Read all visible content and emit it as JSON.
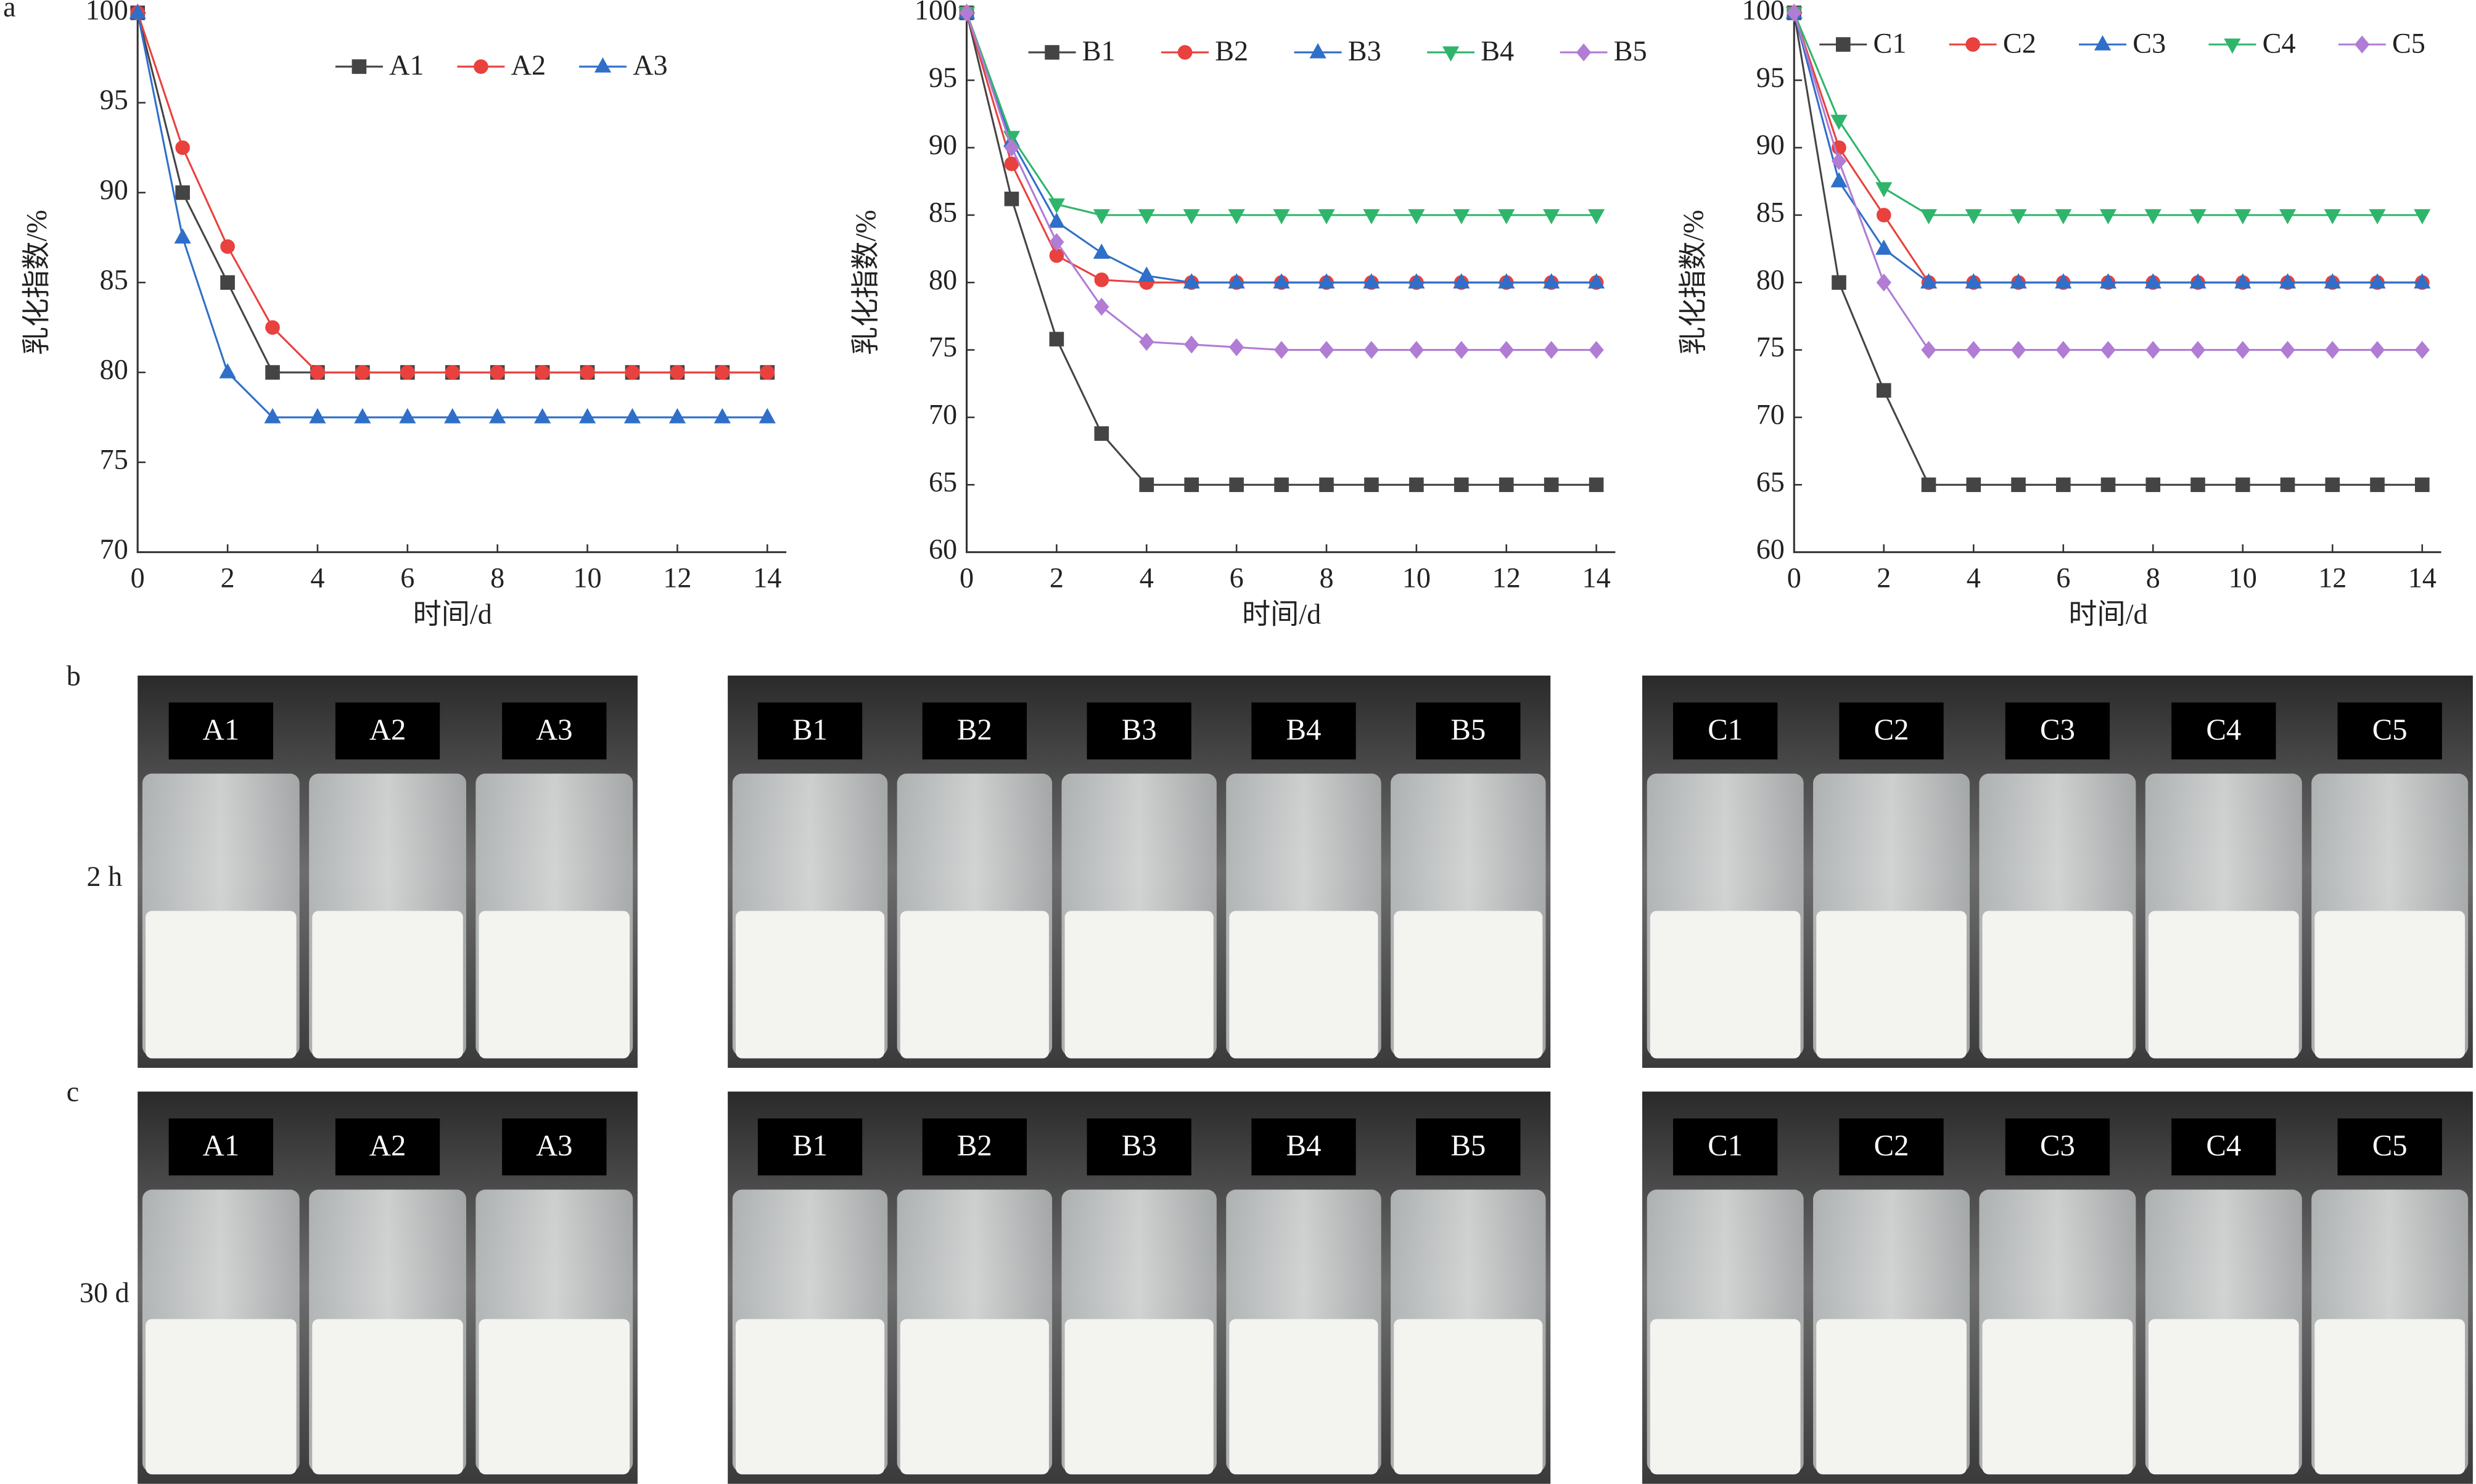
{
  "panel_letter": "a",
  "chart_data": [
    {
      "type": "line",
      "xlabel": "时间/d",
      "ylabel": "乳化指数/%",
      "x": [
        0,
        1,
        2,
        3,
        4,
        5,
        6,
        7,
        8,
        9,
        10,
        11,
        12,
        13,
        14
      ],
      "xlim": [
        0,
        14
      ],
      "xticks": [
        0,
        2,
        4,
        6,
        8,
        10,
        12,
        14
      ],
      "ylim": [
        70,
        100
      ],
      "yticks": [
        70,
        75,
        80,
        85,
        90,
        95,
        100
      ],
      "series": [
        {
          "name": "A1",
          "color": "#444444",
          "marker": "square",
          "values": [
            100,
            90,
            85,
            80,
            80,
            80,
            80,
            80,
            80,
            80,
            80,
            80,
            80,
            80,
            80
          ]
        },
        {
          "name": "A2",
          "color": "#e8413e",
          "marker": "circle",
          "values": [
            100,
            92.5,
            87,
            82.5,
            80,
            80,
            80,
            80,
            80,
            80,
            80,
            80,
            80,
            80,
            80
          ]
        },
        {
          "name": "A3",
          "color": "#2f6fc9",
          "marker": "triangle",
          "values": [
            100,
            87.5,
            80,
            77.5,
            77.5,
            77.5,
            77.5,
            77.5,
            77.5,
            77.5,
            77.5,
            77.5,
            77.5,
            77.5,
            77.5
          ]
        }
      ]
    },
    {
      "type": "line",
      "xlabel": "时间/d",
      "ylabel": "乳化指数/%",
      "x": [
        0,
        1,
        2,
        3,
        4,
        5,
        6,
        7,
        8,
        9,
        10,
        11,
        12,
        13,
        14
      ],
      "xlim": [
        0,
        14
      ],
      "xticks": [
        0,
        2,
        4,
        6,
        8,
        10,
        12,
        14
      ],
      "ylim": [
        60,
        100
      ],
      "yticks": [
        60,
        65,
        70,
        75,
        80,
        85,
        90,
        95,
        100
      ],
      "series": [
        {
          "name": "B1",
          "color": "#444444",
          "marker": "square",
          "values": [
            100,
            86.2,
            75.8,
            68.8,
            65,
            65,
            65,
            65,
            65,
            65,
            65,
            65,
            65,
            65,
            65
          ]
        },
        {
          "name": "B2",
          "color": "#e8413e",
          "marker": "circle",
          "values": [
            100,
            88.8,
            82,
            80.2,
            80,
            80,
            80,
            80,
            80,
            80,
            80,
            80,
            80,
            80,
            80
          ]
        },
        {
          "name": "B3",
          "color": "#2f6fc9",
          "marker": "triangle",
          "values": [
            100,
            90.5,
            84.5,
            82.2,
            80.5,
            80,
            80,
            80,
            80,
            80,
            80,
            80,
            80,
            80,
            80
          ]
        },
        {
          "name": "B4",
          "color": "#2fb56b",
          "marker": "triangle-down",
          "values": [
            100,
            90.8,
            85.8,
            85,
            85,
            85,
            85,
            85,
            85,
            85,
            85,
            85,
            85,
            85,
            85
          ]
        },
        {
          "name": "B5",
          "color": "#b07cd4",
          "marker": "diamond",
          "values": [
            100,
            90,
            83,
            78.2,
            75.6,
            75.4,
            75.2,
            75,
            75,
            75,
            75,
            75,
            75,
            75,
            75
          ]
        }
      ]
    },
    {
      "type": "line",
      "xlabel": "时间/d",
      "ylabel": "乳化指数/%",
      "x": [
        0,
        1,
        2,
        3,
        4,
        5,
        6,
        7,
        8,
        9,
        10,
        11,
        12,
        13,
        14
      ],
      "xlim": [
        0,
        14
      ],
      "xticks": [
        0,
        2,
        4,
        6,
        8,
        10,
        12,
        14
      ],
      "ylim": [
        60,
        100
      ],
      "yticks": [
        60,
        65,
        70,
        75,
        80,
        85,
        90,
        95,
        100
      ],
      "series": [
        {
          "name": "C1",
          "color": "#444444",
          "marker": "square",
          "values": [
            100,
            80,
            72,
            65,
            65,
            65,
            65,
            65,
            65,
            65,
            65,
            65,
            65,
            65,
            65
          ]
        },
        {
          "name": "C2",
          "color": "#e8413e",
          "marker": "circle",
          "values": [
            100,
            90,
            85,
            80,
            80,
            80,
            80,
            80,
            80,
            80,
            80,
            80,
            80,
            80,
            80
          ]
        },
        {
          "name": "C3",
          "color": "#2f6fc9",
          "marker": "triangle",
          "values": [
            100,
            87.5,
            82.5,
            80,
            80,
            80,
            80,
            80,
            80,
            80,
            80,
            80,
            80,
            80,
            80
          ]
        },
        {
          "name": "C4",
          "color": "#2fb56b",
          "marker": "triangle-down",
          "values": [
            100,
            92,
            87,
            85,
            85,
            85,
            85,
            85,
            85,
            85,
            85,
            85,
            85,
            85,
            85
          ]
        },
        {
          "name": "C5",
          "color": "#b07cd4",
          "marker": "diamond",
          "values": [
            100,
            89,
            80,
            75,
            75,
            75,
            75,
            75,
            75,
            75,
            75,
            75,
            75,
            75,
            75
          ]
        }
      ]
    }
  ],
  "photo_panels": [
    {
      "letter": "b",
      "row_label": "2 h",
      "groups": [
        [
          "A1",
          "A2",
          "A3"
        ],
        [
          "B1",
          "B2",
          "B3",
          "B4",
          "B5"
        ],
        [
          "C1",
          "C2",
          "C3",
          "C4",
          "C5"
        ]
      ]
    },
    {
      "letter": "c",
      "row_label": "30 d",
      "groups": [
        [
          "A1",
          "A2",
          "A3"
        ],
        [
          "B1",
          "B2",
          "B3",
          "B4",
          "B5"
        ],
        [
          "C1",
          "C2",
          "C3",
          "C4",
          "C5"
        ]
      ]
    }
  ]
}
